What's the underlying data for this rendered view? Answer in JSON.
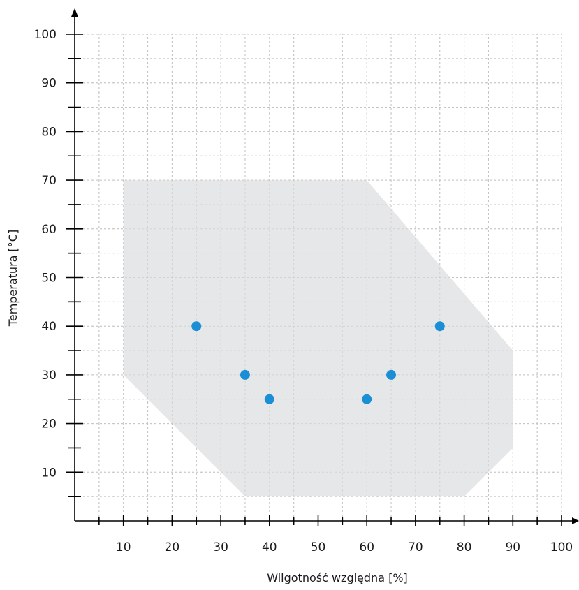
{
  "chart_data": {
    "type": "scatter",
    "title": "",
    "xlabel": "Wilgotność względna [%]",
    "ylabel": "Temperatura [°C]",
    "xlim": [
      0,
      100
    ],
    "ylim": [
      0,
      100
    ],
    "x_ticks": [
      10,
      20,
      30,
      40,
      50,
      60,
      70,
      80,
      90,
      100
    ],
    "y_ticks": [
      10,
      20,
      30,
      40,
      50,
      60,
      70,
      80,
      90,
      100
    ],
    "grid": true,
    "legend": "none",
    "region": {
      "color": "#e6e7e8",
      "points": [
        [
          10,
          70
        ],
        [
          60,
          70
        ],
        [
          90,
          35
        ],
        [
          90,
          15
        ],
        [
          80,
          5
        ],
        [
          35,
          5
        ],
        [
          10,
          30
        ]
      ]
    },
    "series": [
      {
        "color": "#1a8fd6",
        "points": [
          [
            25,
            40
          ],
          [
            35,
            30
          ],
          [
            40,
            25
          ],
          [
            60,
            25
          ],
          [
            65,
            30
          ],
          [
            75,
            40
          ]
        ]
      }
    ]
  }
}
